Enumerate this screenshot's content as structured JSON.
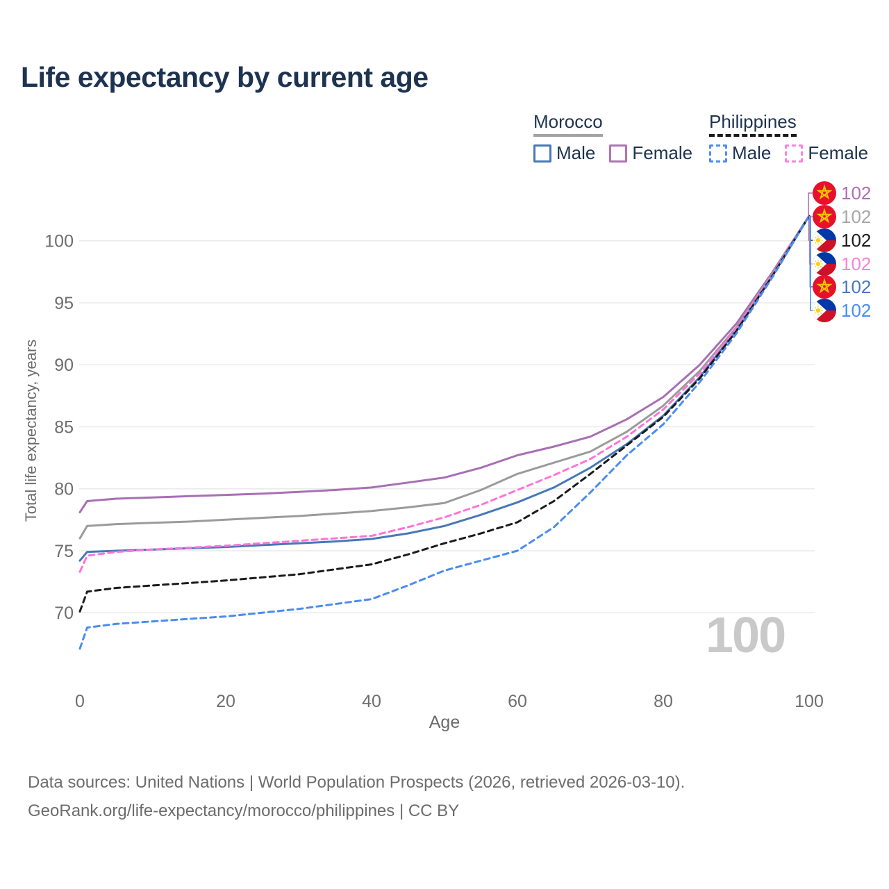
{
  "title": "Life expectancy by current age",
  "watermark": "100",
  "legend": {
    "groups": [
      {
        "name": "Morocco",
        "line_style": "solid",
        "underline_color": "#a3a3a3",
        "items": [
          {
            "label": "Male",
            "color": "#4878b6",
            "dashed": false
          },
          {
            "label": "Female",
            "color": "#b273b2",
            "dashed": false
          }
        ]
      },
      {
        "name": "Philippines",
        "line_style": "dashed",
        "underline_color": "#1a1a1a",
        "items": [
          {
            "label": "Male",
            "color": "#4a8cf2",
            "dashed": true
          },
          {
            "label": "Female",
            "color": "#ff80dd",
            "dashed": true
          }
        ]
      }
    ]
  },
  "footer": {
    "line1": "Data sources: United Nations | World Population Prospects (2026, retrieved 2026-03-10).",
    "line2": "GeoRank.org/life-expectancy/morocco/philippines | CC BY"
  },
  "chart_data": {
    "type": "line",
    "title": "Life expectancy by current age",
    "xlabel": "Age",
    "ylabel": "Total life expectancy, years",
    "xlim": [
      0,
      100
    ],
    "ylim": [
      66,
      103
    ],
    "xticks": [
      0,
      20,
      40,
      60,
      80,
      100
    ],
    "yticks": [
      70,
      75,
      80,
      85,
      90,
      95,
      100
    ],
    "grid": "horizontal",
    "legend_position": "top-right",
    "x": [
      0,
      1,
      5,
      10,
      15,
      20,
      25,
      30,
      35,
      40,
      45,
      50,
      55,
      60,
      65,
      70,
      75,
      80,
      85,
      90,
      95,
      100
    ],
    "series": [
      {
        "name": "Morocco Female",
        "country": "Morocco",
        "sex": "Female",
        "color": "#a86fb4",
        "style": "solid",
        "end_value": 102,
        "values": [
          78.1,
          79.0,
          79.2,
          79.3,
          79.4,
          79.5,
          79.6,
          79.75,
          79.9,
          80.1,
          80.5,
          80.9,
          81.7,
          82.7,
          83.4,
          84.2,
          85.6,
          87.4,
          90.0,
          93.3,
          97.5,
          102
        ]
      },
      {
        "name": "Morocco Both sexes",
        "country": "Morocco",
        "sex": "Both",
        "color": "#9b9b9b",
        "style": "solid",
        "end_value": 102,
        "values": [
          76.0,
          77.0,
          77.15,
          77.25,
          77.35,
          77.5,
          77.65,
          77.8,
          78.0,
          78.2,
          78.5,
          78.85,
          79.9,
          81.2,
          82.1,
          83.0,
          84.6,
          86.7,
          89.5,
          93.0,
          97.4,
          102
        ]
      },
      {
        "name": "Morocco Male",
        "country": "Morocco",
        "sex": "Male",
        "color": "#4878b6",
        "style": "solid",
        "end_value": 102,
        "values": [
          74.2,
          74.9,
          75.0,
          75.1,
          75.2,
          75.3,
          75.45,
          75.6,
          75.75,
          75.95,
          76.4,
          77.0,
          77.9,
          78.9,
          80.1,
          81.7,
          83.6,
          85.9,
          89.0,
          92.8,
          97.3,
          102
        ]
      },
      {
        "name": "Philippines Female",
        "country": "Philippines",
        "sex": "Female",
        "color": "#ff73d9",
        "style": "dashed",
        "end_value": 102,
        "values": [
          73.3,
          74.6,
          74.9,
          75.1,
          75.25,
          75.4,
          75.6,
          75.8,
          76.0,
          76.2,
          76.9,
          77.7,
          78.7,
          79.9,
          81.1,
          82.4,
          84.2,
          86.4,
          89.3,
          92.9,
          97.3,
          102
        ]
      },
      {
        "name": "Philippines Both sexes",
        "country": "Philippines",
        "sex": "Both",
        "color": "#1b1b1b",
        "style": "dashed",
        "end_value": 102,
        "values": [
          70.1,
          71.7,
          72.0,
          72.2,
          72.4,
          72.6,
          72.85,
          73.1,
          73.5,
          73.9,
          74.7,
          75.6,
          76.4,
          77.3,
          79.0,
          81.2,
          83.5,
          85.8,
          88.9,
          92.7,
          97.2,
          102
        ]
      },
      {
        "name": "Philippines Male",
        "country": "Philippines",
        "sex": "Male",
        "color": "#4a8cf2",
        "style": "dashed",
        "end_value": 102,
        "values": [
          67.1,
          68.8,
          69.1,
          69.3,
          69.5,
          69.7,
          70.0,
          70.3,
          70.7,
          71.1,
          72.2,
          73.4,
          74.2,
          75.0,
          76.9,
          79.7,
          82.7,
          85.2,
          88.6,
          92.5,
          97.1,
          102
        ]
      }
    ],
    "end_labels": [
      {
        "series": "Morocco Female",
        "flag": "morocco",
        "label": "102",
        "color": "#b06fb6"
      },
      {
        "series": "Morocco Both sexes",
        "flag": "morocco",
        "label": "102",
        "color": "#a6a6a6"
      },
      {
        "series": "Philippines Both sexes",
        "flag": "philippines",
        "label": "102",
        "color": "#1b1b1b"
      },
      {
        "series": "Philippines Female",
        "flag": "philippines",
        "label": "102",
        "color": "#ff80dd"
      },
      {
        "series": "Morocco Male",
        "flag": "morocco",
        "label": "102",
        "color": "#4878b6"
      },
      {
        "series": "Philippines Male",
        "flag": "philippines",
        "label": "102",
        "color": "#4a8cf2"
      }
    ]
  }
}
